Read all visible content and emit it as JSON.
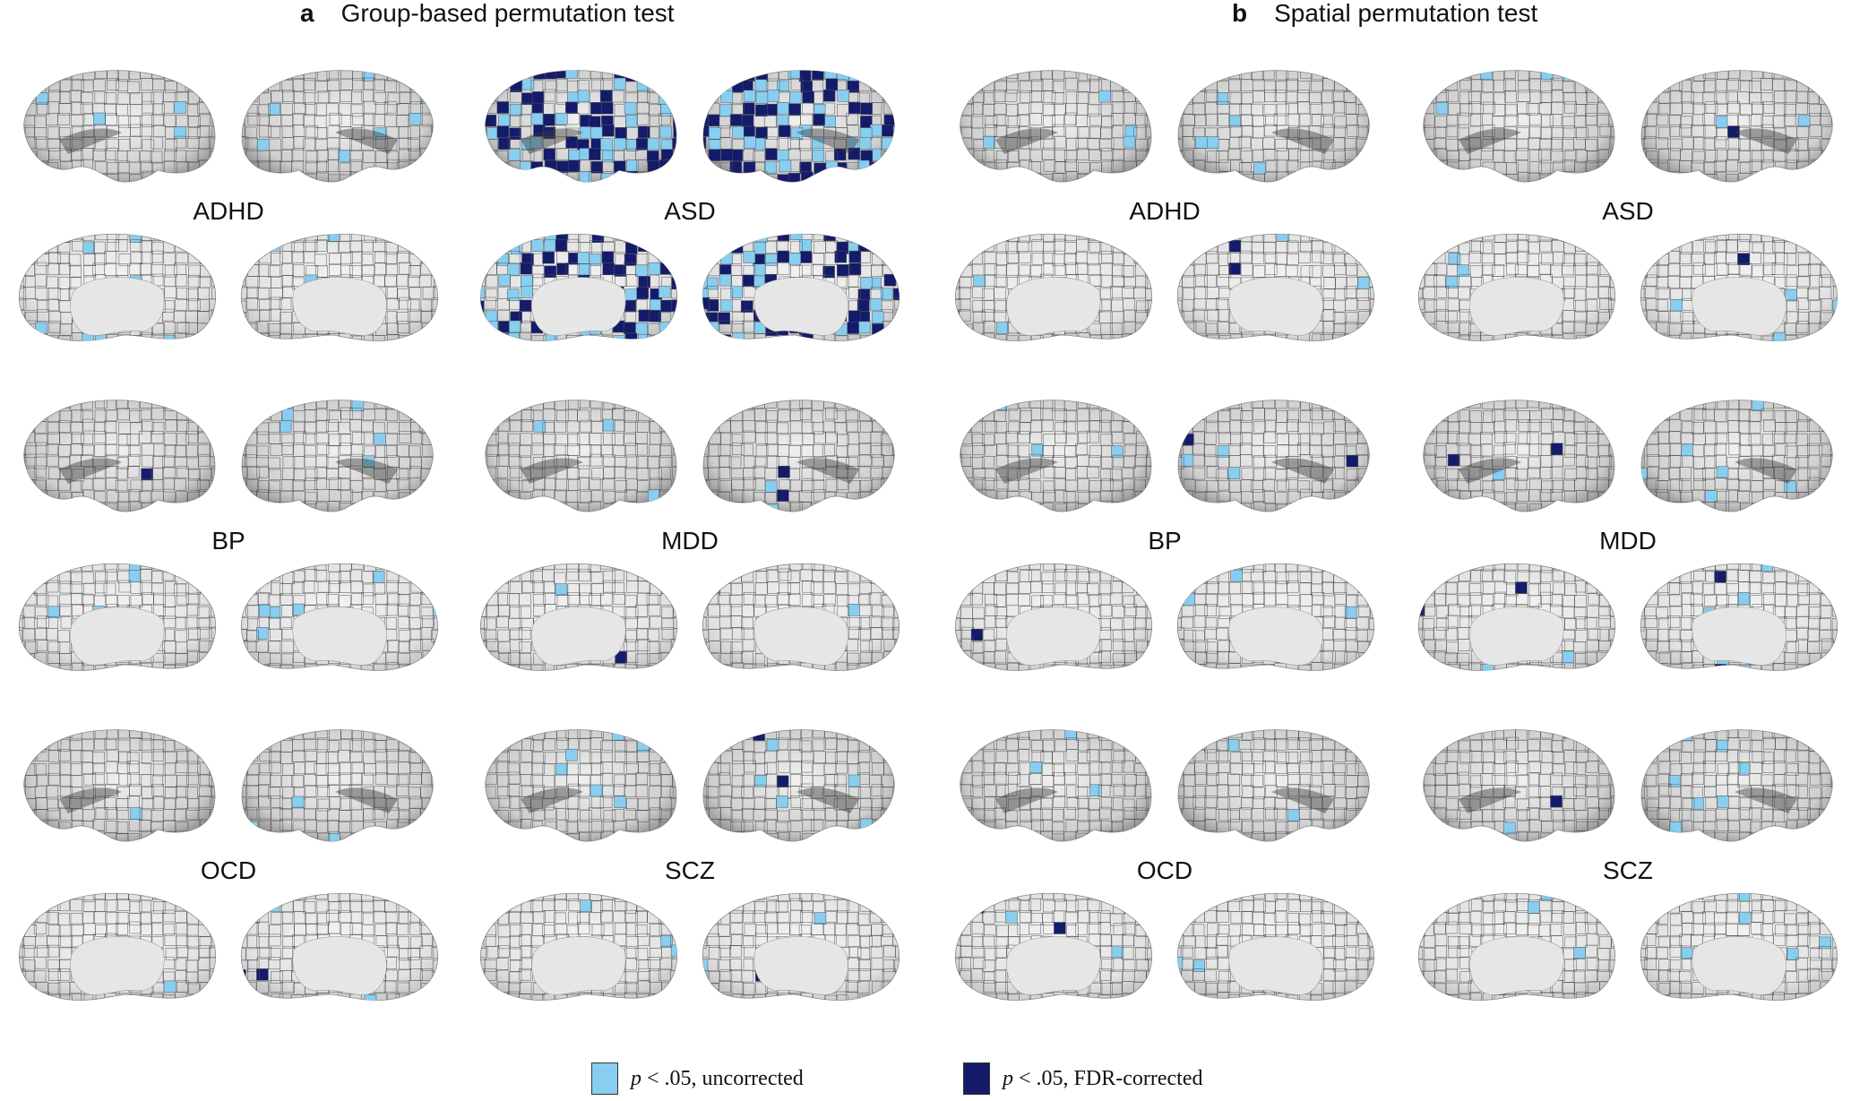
{
  "panels": [
    {
      "letter": "a",
      "title": "Group-based permutation test"
    },
    {
      "letter": "b",
      "title": "Spatial permutation test"
    }
  ],
  "disorders": [
    "ADHD",
    "ASD",
    "BP",
    "MDD",
    "OCD",
    "SCZ"
  ],
  "legend": [
    {
      "color": "#87CEF0",
      "p_symbol": "p",
      "text": " < .05, uncorrected"
    },
    {
      "color": "#141B6B",
      "p_symbol": "p",
      "text": " < .05, FDR-corrected"
    }
  ],
  "colors": {
    "uncorrected": "#87CEF0",
    "fdr_corrected": "#141B6B",
    "cortex": "#e9e9e9",
    "parcel_border": "#555555"
  }
}
